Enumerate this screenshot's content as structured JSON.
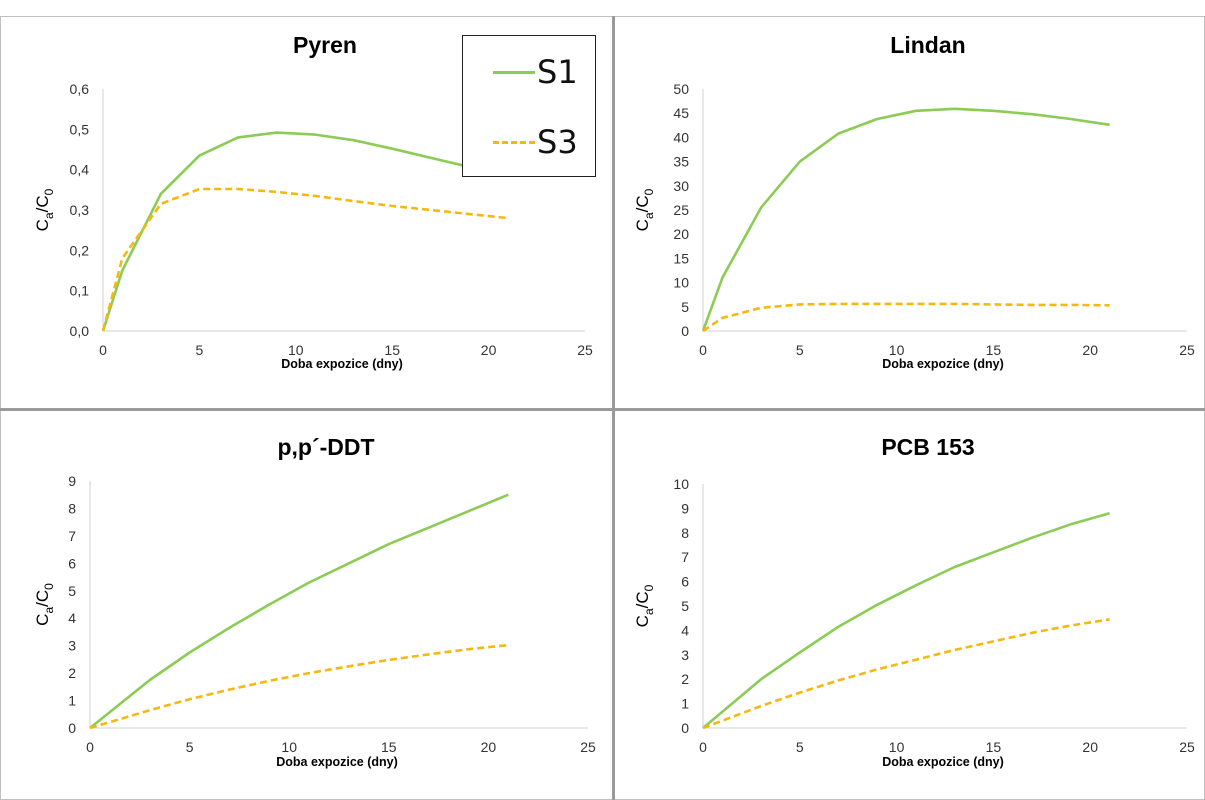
{
  "colors": {
    "S1": "#8ccb55",
    "S3": "#f5b80e"
  },
  "legend": [
    {
      "label": "S1",
      "style": "solid",
      "color": "#8ccb55"
    },
    {
      "label": "S3",
      "style": "dashed",
      "color": "#f5b80e"
    }
  ],
  "chart_data": [
    {
      "type": "line",
      "title": "Pyren",
      "xlabel": "Doba expozice (dny)",
      "ylabel": {
        "main": "C",
        "sub1": "a",
        "sep": "/C",
        "sub2": "0"
      },
      "xlim": [
        0,
        25
      ],
      "xticks": [
        0,
        5,
        10,
        15,
        20,
        25
      ],
      "xtick_labels": [
        "0",
        "5",
        "10",
        "15",
        "20",
        "25"
      ],
      "ylim": [
        0,
        0.6
      ],
      "yticks": [
        0,
        0.1,
        0.2,
        0.3,
        0.4,
        0.5,
        0.6
      ],
      "ytick_labels": [
        "0,0",
        "0,1",
        "0,2",
        "0,3",
        "0,4",
        "0,5",
        "0,6"
      ],
      "series": [
        {
          "name": "S1",
          "x": [
            0,
            1,
            3,
            5,
            7,
            9,
            11,
            13,
            15,
            18,
            21
          ],
          "y": [
            0,
            0.15,
            0.34,
            0.435,
            0.48,
            0.492,
            0.487,
            0.473,
            0.452,
            0.418,
            0.385
          ]
        },
        {
          "name": "S3",
          "x": [
            0,
            1,
            3,
            5,
            7,
            9,
            11,
            13,
            15,
            18,
            21
          ],
          "y": [
            0,
            0.18,
            0.315,
            0.352,
            0.352,
            0.345,
            0.335,
            0.322,
            0.31,
            0.295,
            0.28
          ]
        }
      ]
    },
    {
      "type": "line",
      "title": "Lindan",
      "xlabel": "Doba expozice (dny)",
      "ylabel": {
        "main": "C",
        "sub1": "a",
        "sep": "/C",
        "sub2": "0"
      },
      "xlim": [
        0,
        25
      ],
      "xticks": [
        0,
        5,
        10,
        15,
        20,
        25
      ],
      "xtick_labels": [
        "0",
        "5",
        "10",
        "15",
        "20",
        "25"
      ],
      "ylim": [
        0,
        50
      ],
      "yticks": [
        0,
        5,
        10,
        15,
        20,
        25,
        30,
        35,
        40,
        45,
        50
      ],
      "ytick_labels": [
        "0",
        "5",
        "10",
        "15",
        "20",
        "25",
        "30",
        "35",
        "40",
        "45",
        "50"
      ],
      "series": [
        {
          "name": "S1",
          "x": [
            0,
            1,
            3,
            5,
            7,
            9,
            11,
            13,
            15,
            17,
            19,
            21
          ],
          "y": [
            0,
            11,
            25.5,
            35,
            40.8,
            43.8,
            45.5,
            45.9,
            45.5,
            44.8,
            43.8,
            42.6
          ]
        },
        {
          "name": "S3",
          "x": [
            0,
            1,
            3,
            5,
            7,
            9,
            11,
            13,
            15,
            17,
            19,
            21
          ],
          "y": [
            0,
            2.7,
            4.8,
            5.5,
            5.6,
            5.6,
            5.6,
            5.6,
            5.5,
            5.4,
            5.4,
            5.3
          ]
        }
      ]
    },
    {
      "type": "line",
      "title": "p,p´-DDT",
      "xlabel": "Doba expozice (dny)",
      "ylabel": {
        "main": "C",
        "sub1": "a",
        "sep": "/C",
        "sub2": "0"
      },
      "xlim": [
        0,
        25
      ],
      "xticks": [
        0,
        5,
        10,
        15,
        20,
        25
      ],
      "xtick_labels": [
        "0",
        "5",
        "10",
        "15",
        "20",
        "25"
      ],
      "ylim": [
        0,
        9
      ],
      "yticks": [
        0,
        1,
        2,
        3,
        4,
        5,
        6,
        7,
        8,
        9
      ],
      "ytick_labels": [
        "0",
        "1",
        "2",
        "3",
        "4",
        "5",
        "6",
        "7",
        "8",
        "9"
      ],
      "series": [
        {
          "name": "S1",
          "x": [
            0,
            3,
            5,
            7,
            9,
            11,
            13,
            15,
            17,
            19,
            21
          ],
          "y": [
            0,
            1.75,
            2.75,
            3.65,
            4.5,
            5.3,
            6.0,
            6.7,
            7.3,
            7.9,
            8.5
          ]
        },
        {
          "name": "S3",
          "x": [
            0,
            3,
            5,
            7,
            9,
            11,
            13,
            15,
            17,
            19,
            21
          ],
          "y": [
            0,
            0.65,
            1.05,
            1.4,
            1.72,
            2.0,
            2.25,
            2.48,
            2.68,
            2.87,
            3.02
          ]
        }
      ]
    },
    {
      "type": "line",
      "title": "PCB 153",
      "xlabel": "Doba expozice (dny)",
      "ylabel": {
        "main": "C",
        "sub1": "a",
        "sep": "/C",
        "sub2": "0"
      },
      "xlim": [
        0,
        25
      ],
      "xticks": [
        0,
        5,
        10,
        15,
        20,
        25
      ],
      "xtick_labels": [
        "0",
        "5",
        "10",
        "15",
        "20",
        "25"
      ],
      "ylim": [
        0,
        10
      ],
      "yticks": [
        0,
        1,
        2,
        3,
        4,
        5,
        6,
        7,
        8,
        9,
        10
      ],
      "ytick_labels": [
        "0",
        "1",
        "2",
        "3",
        "4",
        "5",
        "6",
        "7",
        "8",
        "9",
        "10"
      ],
      "series": [
        {
          "name": "S1",
          "x": [
            0,
            3,
            5,
            7,
            9,
            11,
            13,
            15,
            17,
            19,
            21
          ],
          "y": [
            0,
            2.0,
            3.1,
            4.15,
            5.05,
            5.85,
            6.6,
            7.2,
            7.8,
            8.35,
            8.8
          ]
        },
        {
          "name": "S3",
          "x": [
            0,
            3,
            5,
            7,
            9,
            11,
            13,
            15,
            17,
            19,
            21
          ],
          "y": [
            0,
            0.9,
            1.45,
            1.95,
            2.4,
            2.8,
            3.2,
            3.55,
            3.9,
            4.2,
            4.45
          ]
        }
      ]
    }
  ]
}
